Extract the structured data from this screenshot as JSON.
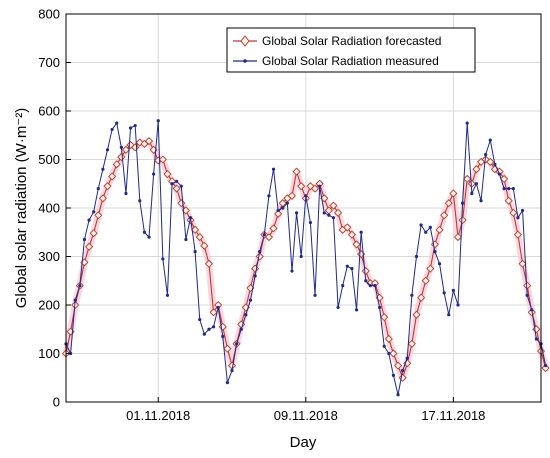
{
  "chart_data": {
    "type": "line",
    "xlabel": "Day",
    "ylabel": "Global solar radiation (W·m⁻²)",
    "ylim": [
      0,
      800
    ],
    "yticks": [
      0,
      100,
      200,
      300,
      400,
      500,
      600,
      700,
      800
    ],
    "xlim": [
      0,
      103
    ],
    "xticks": [
      {
        "x": 20,
        "label": "01.11.2018"
      },
      {
        "x": 52,
        "label": "09.11.2018"
      },
      {
        "x": 84,
        "label": "17.11.2018"
      }
    ],
    "grid": true,
    "legend_position": "top-right",
    "series": [
      {
        "name": "Global Solar Radiation forecasted",
        "color": "#c0392b",
        "marker": "diamond",
        "values": [
          100,
          145,
          200,
          240,
          288,
          320,
          348,
          385,
          420,
          445,
          465,
          490,
          505,
          520,
          530,
          525,
          535,
          532,
          538,
          520,
          498,
          500,
          470,
          455,
          440,
          410,
          395,
          375,
          355,
          340,
          322,
          285,
          185,
          200,
          155,
          110,
          75,
          120,
          160,
          195,
          235,
          275,
          300,
          345,
          340,
          358,
          388,
          410,
          420,
          425,
          475,
          445,
          420,
          445,
          440,
          450,
          420,
          395,
          405,
          390,
          355,
          360,
          345,
          325,
          305,
          270,
          245,
          245,
          215,
          175,
          130,
          100,
          75,
          50,
          80,
          120,
          180,
          215,
          250,
          275,
          325,
          355,
          385,
          410,
          430,
          340,
          375,
          460,
          450,
          480,
          495,
          500,
          495,
          480,
          475,
          460,
          415,
          390,
          345,
          285,
          240,
          185,
          150,
          105,
          70
        ]
      },
      {
        "name": "Global Solar Radiation measured",
        "color": "#1f2a8c",
        "marker": "dot",
        "values": [
          120,
          100,
          210,
          240,
          335,
          375,
          392,
          440,
          480,
          520,
          562,
          575,
          525,
          430,
          565,
          570,
          415,
          350,
          340,
          470,
          580,
          295,
          220,
          450,
          455,
          445,
          335,
          380,
          310,
          170,
          140,
          150,
          155,
          195,
          135,
          40,
          65,
          120,
          150,
          180,
          210,
          260,
          310,
          345,
          425,
          480,
          395,
          400,
          410,
          270,
          390,
          300,
          425,
          370,
          220,
          445,
          390,
          385,
          380,
          195,
          240,
          280,
          275,
          190,
          350,
          250,
          240,
          240,
          195,
          115,
          100,
          55,
          15,
          65,
          90,
          220,
          300,
          365,
          350,
          360,
          310,
          285,
          225,
          180,
          230,
          200,
          410,
          575,
          430,
          450,
          415,
          510,
          540,
          490,
          470,
          440,
          440,
          440,
          380,
          395,
          220,
          190,
          130,
          120,
          75
        ]
      }
    ]
  }
}
